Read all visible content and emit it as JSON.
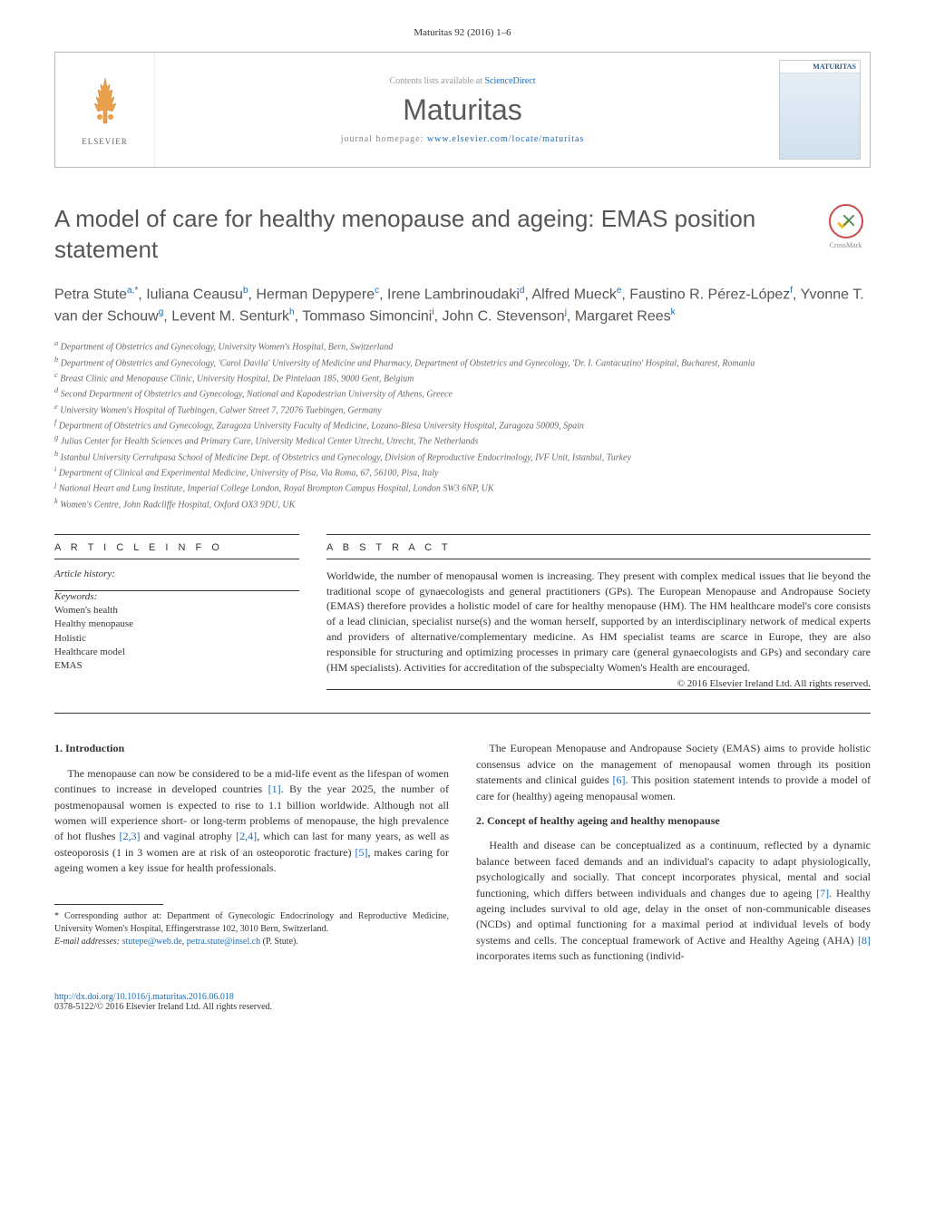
{
  "journal": {
    "citation": "Maturitas 92 (2016) 1–6",
    "contents_prefix": "Contents lists available at ",
    "contents_link": "ScienceDirect",
    "name": "Maturitas",
    "homepage_prefix": "journal homepage: ",
    "homepage_link": "www.elsevier.com/locate/maturitas",
    "publisher": "ELSEVIER",
    "cover_title": "MATURITAS"
  },
  "article": {
    "title": "A model of care for healthy menopause and ageing: EMAS position statement",
    "crossmark_label": "CrossMark"
  },
  "authors_html": "Petra Stute<sup><a>a,</a>*</sup>, Iuliana Ceausu<sup><a>b</a></sup>, Herman Depypere<sup><a>c</a></sup>, Irene Lambrinoudaki<sup><a>d</a></sup>, Alfred Mueck<sup><a>e</a></sup>, Faustino R. Pérez-López<sup><a>f</a></sup>, Yvonne T. van der Schouw<sup><a>g</a></sup>, Levent M. Senturk<sup><a>h</a></sup>, Tommaso Simoncini<sup><a>i</a></sup>, John C. Stevenson<sup><a>j</a></sup>, Margaret Rees<sup><a>k</a></sup>",
  "affiliations": [
    "a Department of Obstetrics and Gynecology, University Women's Hospital, Bern, Switzerland",
    "b Department of Obstetrics and Gynecology, 'Carol Davila' University of Medicine and Pharmacy, Department of Obstetrics and Gynecology, 'Dr. I. Cantacuzino' Hospital, Bucharest, Romania",
    "c Breast Clinic and Menopause Clinic, University Hospital, De Pintelaan 185, 9000 Gent, Belgium",
    "d Second Department of Obstetrics and Gynecology, National and Kapodestrian University of Athens, Greece",
    "e University Women's Hospital of Tuebingen, Calwer Street 7, 72076 Tuebingen, Germany",
    "f Department of Obstetrics and Gynecology, Zaragoza University Faculty of Medicine, Lozano-Blesa University Hospital, Zaragoza 50009, Spain",
    "g Julius Center for Health Sciences and Primary Care, University Medical Center Utrecht, Utrecht, The Netherlands",
    "h Istanbul University Cerrahpasa School of Medicine Dept. of Obstetrics and Gynecology, Division of Reproductive Endocrinology, IVF Unit, Istanbul, Turkey",
    "i Department of Clinical and Experimental Medicine, University of Pisa, Via Roma, 67, 56100, Pisa, Italy",
    "j National Heart and Lung Institute, Imperial College London, Royal Brompton Campus Hospital, London SW3 6NP, UK",
    "k Women's Centre, John Radcliffe Hospital, Oxford OX3 9DU, UK"
  ],
  "info": {
    "article_info_label": "A R T I C L E  I N F O",
    "abstract_label": "A B S T R A C T",
    "history_label": "Article history:",
    "keywords_label": "Keywords:",
    "keywords": [
      "Women's health",
      "Healthy menopause",
      "Holistic",
      "Healthcare model",
      "EMAS"
    ]
  },
  "abstract": {
    "text": "Worldwide, the number of menopausal women is increasing. They present with complex medical issues that lie beyond the traditional scope of gynaecologists and general practitioners (GPs). The European Menopause and Andropause Society (EMAS) therefore provides a holistic model of care for healthy menopause (HM). The HM healthcare model's core consists of a lead clinician, specialist nurse(s) and the woman herself, supported by an interdisciplinary network of medical experts and providers of alternative/complementary medicine. As HM specialist teams are scarce in Europe, they are also responsible for structuring and optimizing processes in primary care (general gynaecologists and GPs) and secondary care (HM specialists). Activities for accreditation of the subspecialty Women's Health are encouraged.",
    "copyright": "© 2016 Elsevier Ireland Ltd. All rights reserved."
  },
  "sections": {
    "s1": {
      "heading": "1. Introduction",
      "p1_pre": "The menopause can now be considered to be a mid-life event as the lifespan of women continues to increase in developed countries ",
      "p1_ref1": "[1]",
      "p1_mid1": ". By the year 2025, the number of postmenopausal women is expected to rise to 1.1 billion worldwide. Although not all women will experience short- or long-term problems of menopause, the high prevalence of hot flushes ",
      "p1_ref2": "[2,3]",
      "p1_mid2": " and vaginal atrophy ",
      "p1_ref3": "[2,4]",
      "p1_mid3": ", which can last for many years, as well as osteoporosis (1 in 3 women are at risk of an osteoporotic fracture) ",
      "p1_ref4": "[5]",
      "p1_post": ", makes caring for ageing women a key issue for health professionals.",
      "p2_pre": "The European Menopause and Andropause Society (EMAS) aims to provide holistic consensus advice on the management of menopausal women through its position statements and clinical guides ",
      "p2_ref1": "[6]",
      "p2_post": ". This position statement intends to provide a model of care for (healthy) ageing menopausal women."
    },
    "s2": {
      "heading": "2. Concept of healthy ageing and healthy menopause",
      "p1_pre": "Health and disease can be conceptualized as a continuum, reflected by a dynamic balance between faced demands and an individual's capacity to adapt physiologically, psychologically and socially. That concept incorporates physical, mental and social functioning, which differs between individuals and changes due to ageing ",
      "p1_ref1": "[7]",
      "p1_mid": ". Healthy ageing includes survival to old age, delay in the onset of non-communicable diseases (NCDs) and optimal functioning for a maximal period at individual levels of body systems and cells. The conceptual framework of Active and Healthy Ageing (AHA) ",
      "p1_ref2": "[8]",
      "p1_post": " incorporates items such as functioning (individ-"
    }
  },
  "footnote": {
    "corr_label": "* Corresponding author at: Department of Gynecologic Endocrinology and Reproductive Medicine, University Women's Hospital, Effingerstrasse 102, 3010 Bern, Switzerland.",
    "email_label": "E-mail addresses: ",
    "email1": "stutepe@web.de",
    "email_sep": ", ",
    "email2": "petra.stute@insel.ch",
    "email_post": " (P. Stute)."
  },
  "bottom": {
    "doi": "http://dx.doi.org/10.1016/j.maturitas.2016.06.018",
    "issn_line": "0378-5122/© 2016 Elsevier Ireland Ltd. All rights reserved."
  },
  "colors": {
    "link": "#1a6bb5",
    "text": "#333333",
    "heading": "#555555"
  }
}
